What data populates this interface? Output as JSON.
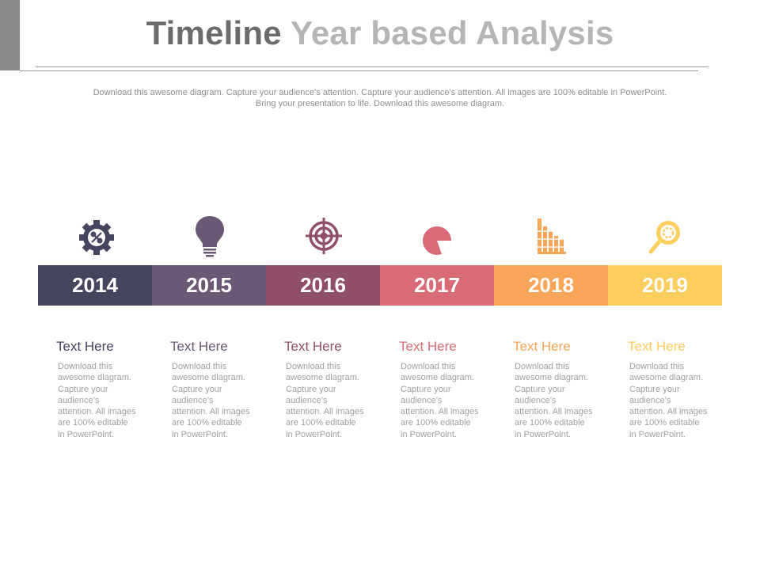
{
  "title": {
    "part1": "Timeline",
    "part2": "Year based Analysis"
  },
  "subtitle": "Download this awesome diagram. Capture your audience’s attention. Capture your audience’s attention. All images are 100% editable in PowerPoint. Bring your presentation to life. Download this awesome diagram.",
  "colors": {
    "2014": "#464560",
    "2015": "#6a5875",
    "2016": "#8f4e69",
    "2017": "#d96b76",
    "2018": "#f9a557",
    "2019": "#fcce5d"
  },
  "timeline": [
    {
      "year": "2014",
      "icon": "gear-icon",
      "heading": "Text Here",
      "body": "Download this awesome diagram. Capture your audience’s attention. All images are 100% editable in PowerPoint."
    },
    {
      "year": "2015",
      "icon": "lightbulb-icon",
      "heading": "Text Here",
      "body": "Download this awesome diagram. Capture your audience’s attention. All images are 100% editable in PowerPoint."
    },
    {
      "year": "2016",
      "icon": "target-icon",
      "heading": "Text Here",
      "body": "Download this awesome diagram. Capture your audience’s attention. All images are 100% editable in PowerPoint."
    },
    {
      "year": "2017",
      "icon": "pie-chart-icon",
      "heading": "Text Here",
      "body": "Download this awesome diagram. Capture your audience’s attention. All images are 100% editable in PowerPoint."
    },
    {
      "year": "2018",
      "icon": "bar-chart-icon",
      "heading": "Text Here",
      "body": "Download this awesome diagram. Capture your audience’s attention. All images are 100% editable in PowerPoint."
    },
    {
      "year": "2019",
      "icon": "magnifier-icon",
      "heading": "Text Here",
      "body": "Download this awesome diagram. Capture your audience’s attention. All images are 100% editable in PowerPoint."
    }
  ]
}
